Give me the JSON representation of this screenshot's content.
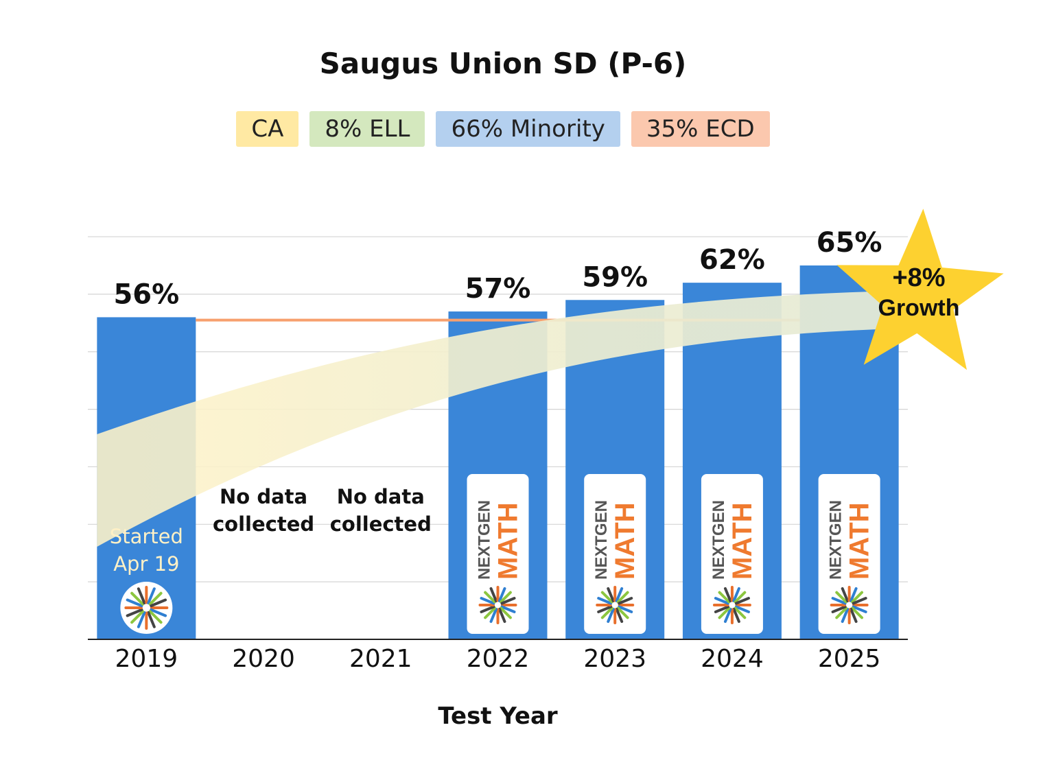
{
  "title": "Saugus Union SD (P-6)",
  "badges": [
    {
      "label": "CA",
      "color": "#FFE9A3"
    },
    {
      "label": "8% ELL",
      "color": "#D4E8BE"
    },
    {
      "label": "66% Minority",
      "color": "#B4D0EF"
    },
    {
      "label": "35% ECD",
      "color": "#FBC8AE"
    }
  ],
  "chart_data": {
    "type": "bar",
    "categories": [
      "2019",
      "2020",
      "2021",
      "2022",
      "2023",
      "2024",
      "2025"
    ],
    "values": [
      56,
      null,
      null,
      57,
      59,
      62,
      65
    ],
    "value_labels": [
      "56%",
      "",
      "",
      "57%",
      "59%",
      "62%",
      "65%"
    ],
    "no_data_label": [
      "No data",
      "collected"
    ],
    "xlabel": "Test Year",
    "ylabel": "",
    "ylim": [
      0,
      70
    ],
    "grid": true,
    "bar_color": "#3A86D8",
    "reference_line": {
      "value": 55.5,
      "color": "#F7A06E"
    },
    "first_bar_note": [
      "Started",
      "Apr 19"
    ],
    "logo_text": {
      "line1": "NEXTGEN",
      "line2": "MATH"
    },
    "logo_years": [
      "2022",
      "2023",
      "2024",
      "2025"
    ],
    "growth_callout": {
      "value": "+8%",
      "label": "Growth",
      "color": "#FDD130"
    }
  }
}
